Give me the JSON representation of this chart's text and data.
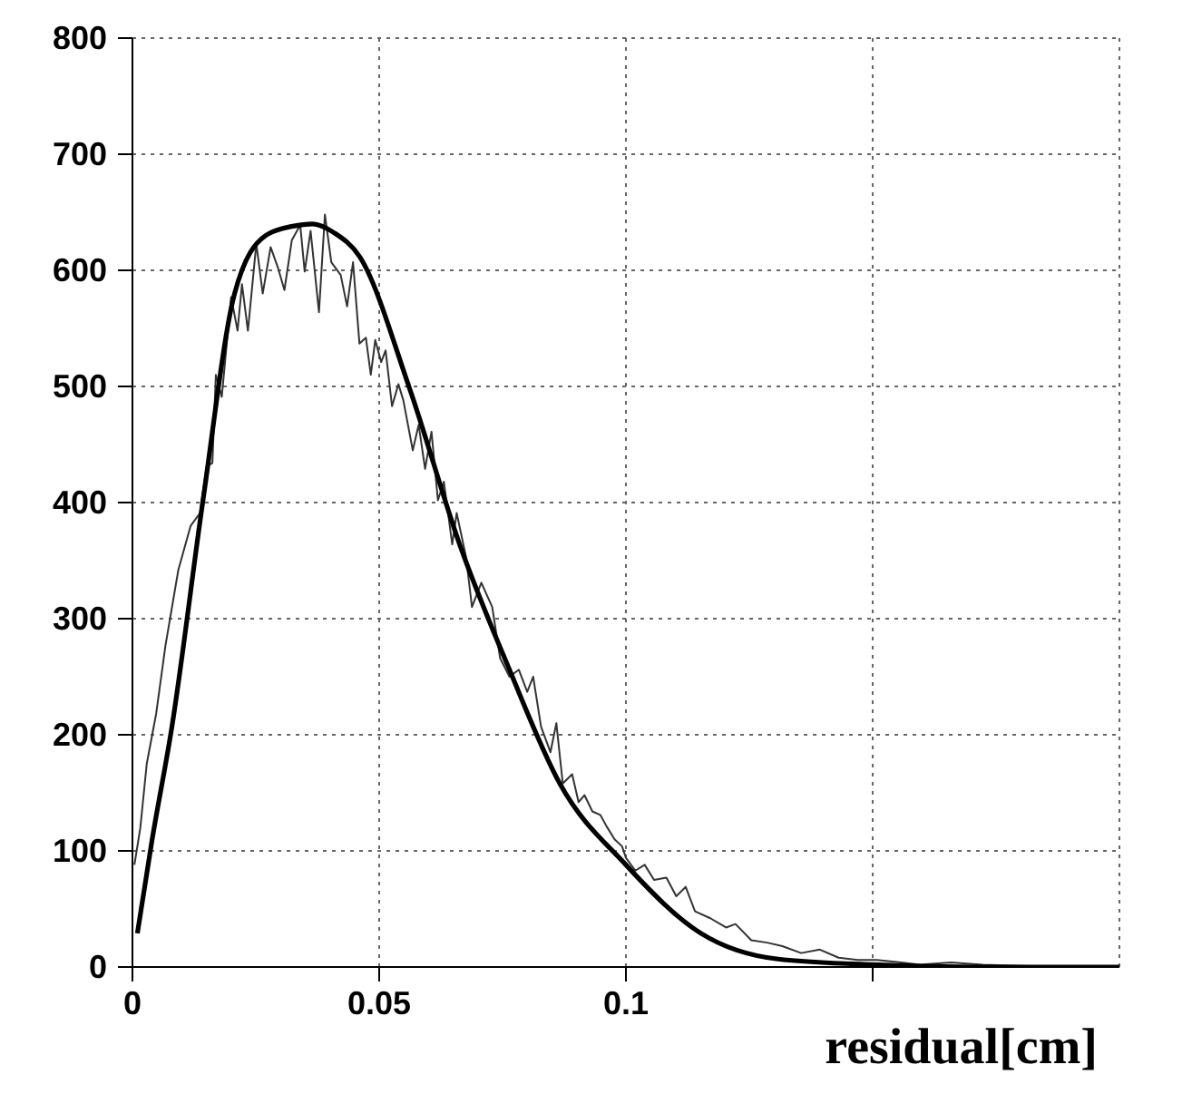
{
  "chart_data": {
    "type": "line",
    "xlabel": "residual[cm]",
    "xlim": [
      0,
      0.2
    ],
    "xticks": [
      0,
      {
        "value": 0.05,
        "label": "0.05"
      },
      0.1,
      {
        "value": 0.15,
        "label": null
      }
    ],
    "ylim": [
      0,
      800
    ],
    "yticks": [
      0,
      100,
      200,
      300,
      400,
      500,
      600,
      700,
      800
    ],
    "grid": true,
    "marker": "none",
    "series": [
      {
        "color": "#333333",
        "x": [
          0.0004,
          0.0016,
          0.0029,
          0.0048,
          0.0067,
          0.0093,
          0.0118,
          0.0137,
          0.015,
          0.0162,
          0.0169,
          0.0181,
          0.02,
          0.0213,
          0.0222,
          0.0234,
          0.0251,
          0.0264,
          0.028,
          0.0295,
          0.0308,
          0.0323,
          0.034,
          0.0349,
          0.0361,
          0.0378,
          0.039,
          0.0403,
          0.0422,
          0.0435,
          0.0447,
          0.046,
          0.0473,
          0.0483,
          0.0492,
          0.0504,
          0.0513,
          0.0526,
          0.0539,
          0.0549,
          0.0568,
          0.058,
          0.0593,
          0.0606,
          0.0619,
          0.0631,
          0.0648,
          0.0657,
          0.0676,
          0.0688,
          0.0707,
          0.0729,
          0.0745,
          0.0764,
          0.0783,
          0.08,
          0.0812,
          0.0828,
          0.0847,
          0.0859,
          0.0872,
          0.0891,
          0.0904,
          0.0916,
          0.0932,
          0.0948,
          0.0961,
          0.0977,
          0.0992,
          0.1,
          0.1019,
          0.1038,
          0.1057,
          0.1082,
          0.1102,
          0.1121,
          0.114,
          0.1171,
          0.1203,
          0.1222,
          0.1254,
          0.1286,
          0.1317,
          0.1355,
          0.1393,
          0.1431,
          0.147,
          0.1508,
          0.1558,
          0.1596,
          0.1659,
          0.1723,
          0.1799,
          0.19,
          0.2
        ],
        "values": [
          88,
          120,
          175,
          218,
          277,
          342,
          380,
          391,
          431,
          434,
          510,
          491,
          577,
          548,
          588,
          548,
          623,
          580,
          620,
          602,
          583,
          626,
          639,
          599,
          634,
          564,
          648,
          607,
          596,
          569,
          607,
          537,
          542,
          510,
          540,
          521,
          531,
          483,
          502,
          488,
          445,
          467,
          429,
          461,
          402,
          418,
          364,
          391,
          353,
          310,
          331,
          310,
          266,
          250,
          256,
          237,
          250,
          207,
          185,
          210,
          158,
          166,
          142,
          148,
          134,
          131,
          121,
          110,
          104,
          94,
          83,
          88,
          75,
          77,
          61,
          69,
          48,
          42,
          34,
          37,
          23,
          21,
          18,
          12,
          15,
          8,
          6,
          6,
          4,
          2,
          4,
          2,
          1,
          0,
          0
        ]
      },
      {
        "color": "#000000",
        "x": [
          0.001,
          0.004,
          0.008,
          0.0143,
          0.0207,
          0.027,
          0.0325,
          0.0365,
          0.041,
          0.046,
          0.0561,
          0.0663,
          0.0764,
          0.0866,
          0.1,
          0.1152,
          0.1305,
          0.15,
          0.175,
          0.2
        ],
        "values": [
          29,
          110,
          207,
          402,
          580,
          630,
          638,
          640,
          632,
          612,
          499,
          364,
          256,
          158,
          88,
          29,
          7,
          2,
          0,
          0
        ]
      }
    ]
  }
}
